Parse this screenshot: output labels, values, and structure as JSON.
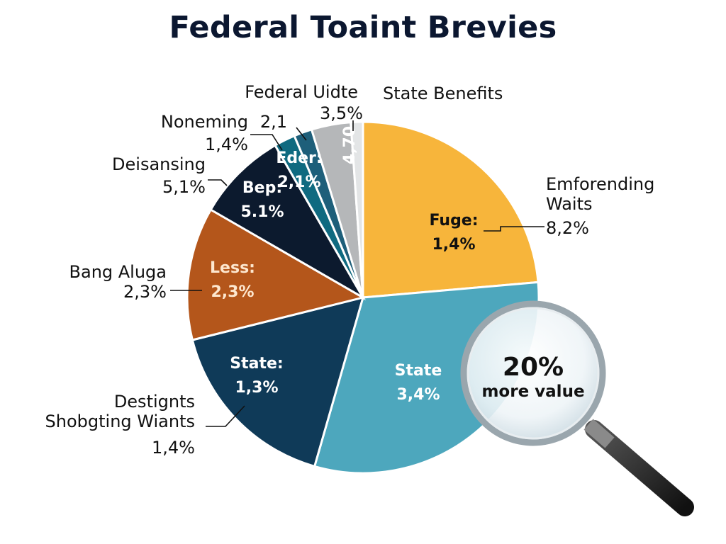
{
  "chart_data": {
    "type": "pie",
    "title": "Federal Toaint Brevies",
    "slices": [
      {
        "inner_label": "Fuge:",
        "inner_value": "1,4%",
        "outer_label": "Emforending\nWaits",
        "outer_value": "8,2%",
        "start_deg": 0,
        "end_deg": 85,
        "color": "#f7b53b",
        "inner_text_color": "#111111"
      },
      {
        "inner_label": "State",
        "inner_value": "3,4%",
        "outer_label": "",
        "outer_value": "",
        "start_deg": 85,
        "end_deg": 196,
        "color": "#4da7bd",
        "inner_text_color": "#ffffff"
      },
      {
        "inner_label": "State:",
        "inner_value": "1,3%",
        "outer_label": "Destignts\nShobgting Wiants",
        "outer_value": "1,4%",
        "start_deg": 196,
        "end_deg": 256,
        "color": "#0f3a58",
        "inner_text_color": "#ffffff"
      },
      {
        "inner_label": "Less:",
        "inner_value": "2,3%",
        "outer_label": "Bang Aluga",
        "outer_value": "2,3%",
        "start_deg": 256,
        "end_deg": 300,
        "color": "#b4561b",
        "inner_text_color": "#fde7cf"
      },
      {
        "inner_label": "Bep:",
        "inner_value": "5.1%",
        "outer_label": "Deisansing",
        "outer_value": "5,1%",
        "start_deg": 300,
        "end_deg": 330,
        "color": "#0c1a2e",
        "inner_text_color": "#ffffff"
      },
      {
        "inner_label": "",
        "inner_value": "",
        "outer_label": "Noneming",
        "outer_value": "1,4%",
        "start_deg": 330,
        "end_deg": 337,
        "color": "#0f6a80",
        "inner_text_color": "#ffffff"
      },
      {
        "inner_label": "Eder:",
        "inner_value": "2,1%",
        "outer_label": "",
        "outer_value": "",
        "start_deg": 337,
        "end_deg": 343,
        "color": "#1e5f7a",
        "inner_text_color": "#ffffff"
      },
      {
        "inner_label": "",
        "inner_value": "",
        "outer_label": "Federal Uidte",
        "outer_value": "2,1",
        "start_deg": 343,
        "end_deg": 356,
        "color": "#b5b7b9",
        "inner_text_color": "#ffffff"
      },
      {
        "inner_label": "4,70",
        "inner_value": "",
        "outer_label": "",
        "outer_value": "3,5%",
        "start_deg": 356,
        "end_deg": 360,
        "color": "#e3e5e6",
        "inner_text_color": "#ffffff"
      }
    ],
    "extra_labels": [
      "State Benefits"
    ],
    "callout": {
      "value": "20%",
      "text": "more value"
    },
    "legend": "none"
  }
}
